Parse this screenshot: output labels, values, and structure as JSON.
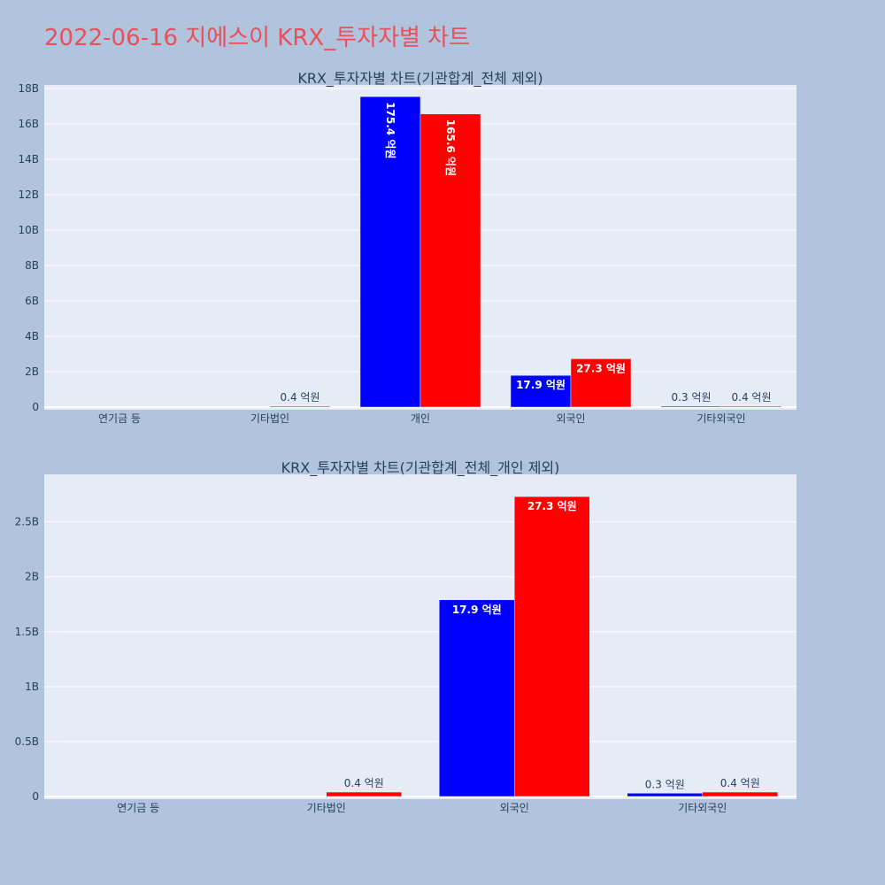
{
  "title": "2022-06-16 지에스이 KRX_투자자별 차트",
  "colors": {
    "buy": "#0000ff",
    "sell": "#ff0000",
    "title": "#e8505b",
    "plot_bg": "#e5ecf6",
    "paper": "#b0c4de",
    "text": "#2a3f5f"
  },
  "chart_data": [
    {
      "type": "bar",
      "title": "KRX_투자자별 차트(기관합계_전체 제외)",
      "categories": [
        "연기금 등",
        "기타법인",
        "개인",
        "외국인",
        "기타외국인"
      ],
      "ylim": [
        0,
        18000000000
      ],
      "yticks": [
        0,
        2000000000,
        4000000000,
        6000000000,
        8000000000,
        10000000000,
        12000000000,
        14000000000,
        16000000000,
        18000000000
      ],
      "ytick_labels": [
        "0",
        "2B",
        "4B",
        "6B",
        "8B",
        "10B",
        "12B",
        "14B",
        "16B",
        "18B"
      ],
      "grid": true,
      "series": [
        {
          "color": "#0000ff",
          "values": [
            0,
            0,
            17540000000,
            1790000000,
            30000000
          ],
          "labels": [
            "",
            "",
            "175.4 억원",
            "17.9 억원",
            "0.3 억원"
          ]
        },
        {
          "color": "#ff0000",
          "values": [
            0,
            40000000,
            16560000000,
            2730000000,
            40000000
          ],
          "labels": [
            "",
            "0.4 억원",
            "165.6 억원",
            "27.3 억원",
            "0.4 억원"
          ]
        }
      ]
    },
    {
      "type": "bar",
      "title": "KRX_투자자별 차트(기관합계_전체_개인 제외)",
      "categories": [
        "연기금 등",
        "기타법인",
        "외국인",
        "기타외국인"
      ],
      "ylim": [
        0,
        2900000000
      ],
      "yticks": [
        0,
        500000000,
        1000000000,
        1500000000,
        2000000000,
        2500000000
      ],
      "ytick_labels": [
        "0",
        "0.5B",
        "1B",
        "1.5B",
        "2B",
        "2.5B"
      ],
      "grid": true,
      "series": [
        {
          "color": "#0000ff",
          "values": [
            0,
            0,
            1790000000,
            30000000
          ],
          "labels": [
            "",
            "",
            "17.9 억원",
            "0.3 억원"
          ]
        },
        {
          "color": "#ff0000",
          "values": [
            0,
            40000000,
            2730000000,
            40000000
          ],
          "labels": [
            "",
            "0.4 억원",
            "27.3 억원",
            "0.4 억원"
          ]
        }
      ]
    }
  ]
}
